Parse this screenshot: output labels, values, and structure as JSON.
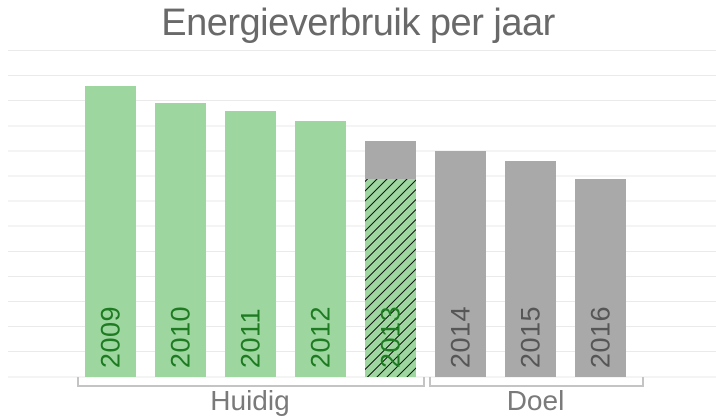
{
  "title": "Energieverbruik per jaar",
  "group_labels": {
    "huidig": "Huidig",
    "doel": "Doel"
  },
  "colors": {
    "bar_green": "#9dd79f",
    "bar_gray": "#a9a9a9",
    "label_green_dark": "#1e7b21",
    "label_gray_dark": "#565656",
    "title_gray": "#696969",
    "group_label_gray": "#7a7a7a",
    "gridline": "#eaeaea",
    "bracket": "#c4c4c4",
    "hatch_line": "#1a1a1a",
    "background": "#ffffff"
  },
  "chart_data": {
    "type": "bar",
    "title": "Energieverbruik per jaar",
    "categories": [
      "2009",
      "2010",
      "2011",
      "2012",
      "2013",
      "2014",
      "2015",
      "2016"
    ],
    "bars": [
      {
        "year": "2009",
        "group": "Huidig",
        "style": "solid-green",
        "value": 11.6
      },
      {
        "year": "2010",
        "group": "Huidig",
        "style": "solid-green",
        "value": 10.9
      },
      {
        "year": "2011",
        "group": "Huidig",
        "style": "solid-green",
        "value": 10.6
      },
      {
        "year": "2012",
        "group": "Huidig",
        "style": "solid-green",
        "value": 10.2
      },
      {
        "year": "2013",
        "group": "Huidig",
        "style": "hatched-green-with-gray-cap",
        "value": 9.4,
        "hatched_value": 7.9,
        "gray_cap_value": 1.5
      },
      {
        "year": "2014",
        "group": "Doel",
        "style": "solid-gray",
        "value": 9.0
      },
      {
        "year": "2015",
        "group": "Doel",
        "style": "solid-gray",
        "value": 8.6
      },
      {
        "year": "2016",
        "group": "Doel",
        "style": "solid-gray",
        "value": 7.9
      }
    ],
    "groups": [
      {
        "label": "Huidig",
        "years": [
          "2009",
          "2010",
          "2011",
          "2012",
          "2013"
        ]
      },
      {
        "label": "Doel",
        "years": [
          "2014",
          "2015",
          "2016"
        ]
      }
    ],
    "value_unit": "gridline units (no numeric axis labels shown)",
    "ylim": [
      0,
      13
    ],
    "xlabel": "",
    "ylabel": "",
    "yaxis_tick_labels": "none",
    "gridlines": "horizontal, light gray, every 1 unit",
    "legend": "none",
    "bar_label_orientation": "rotated 90deg, inside bar bottom"
  }
}
